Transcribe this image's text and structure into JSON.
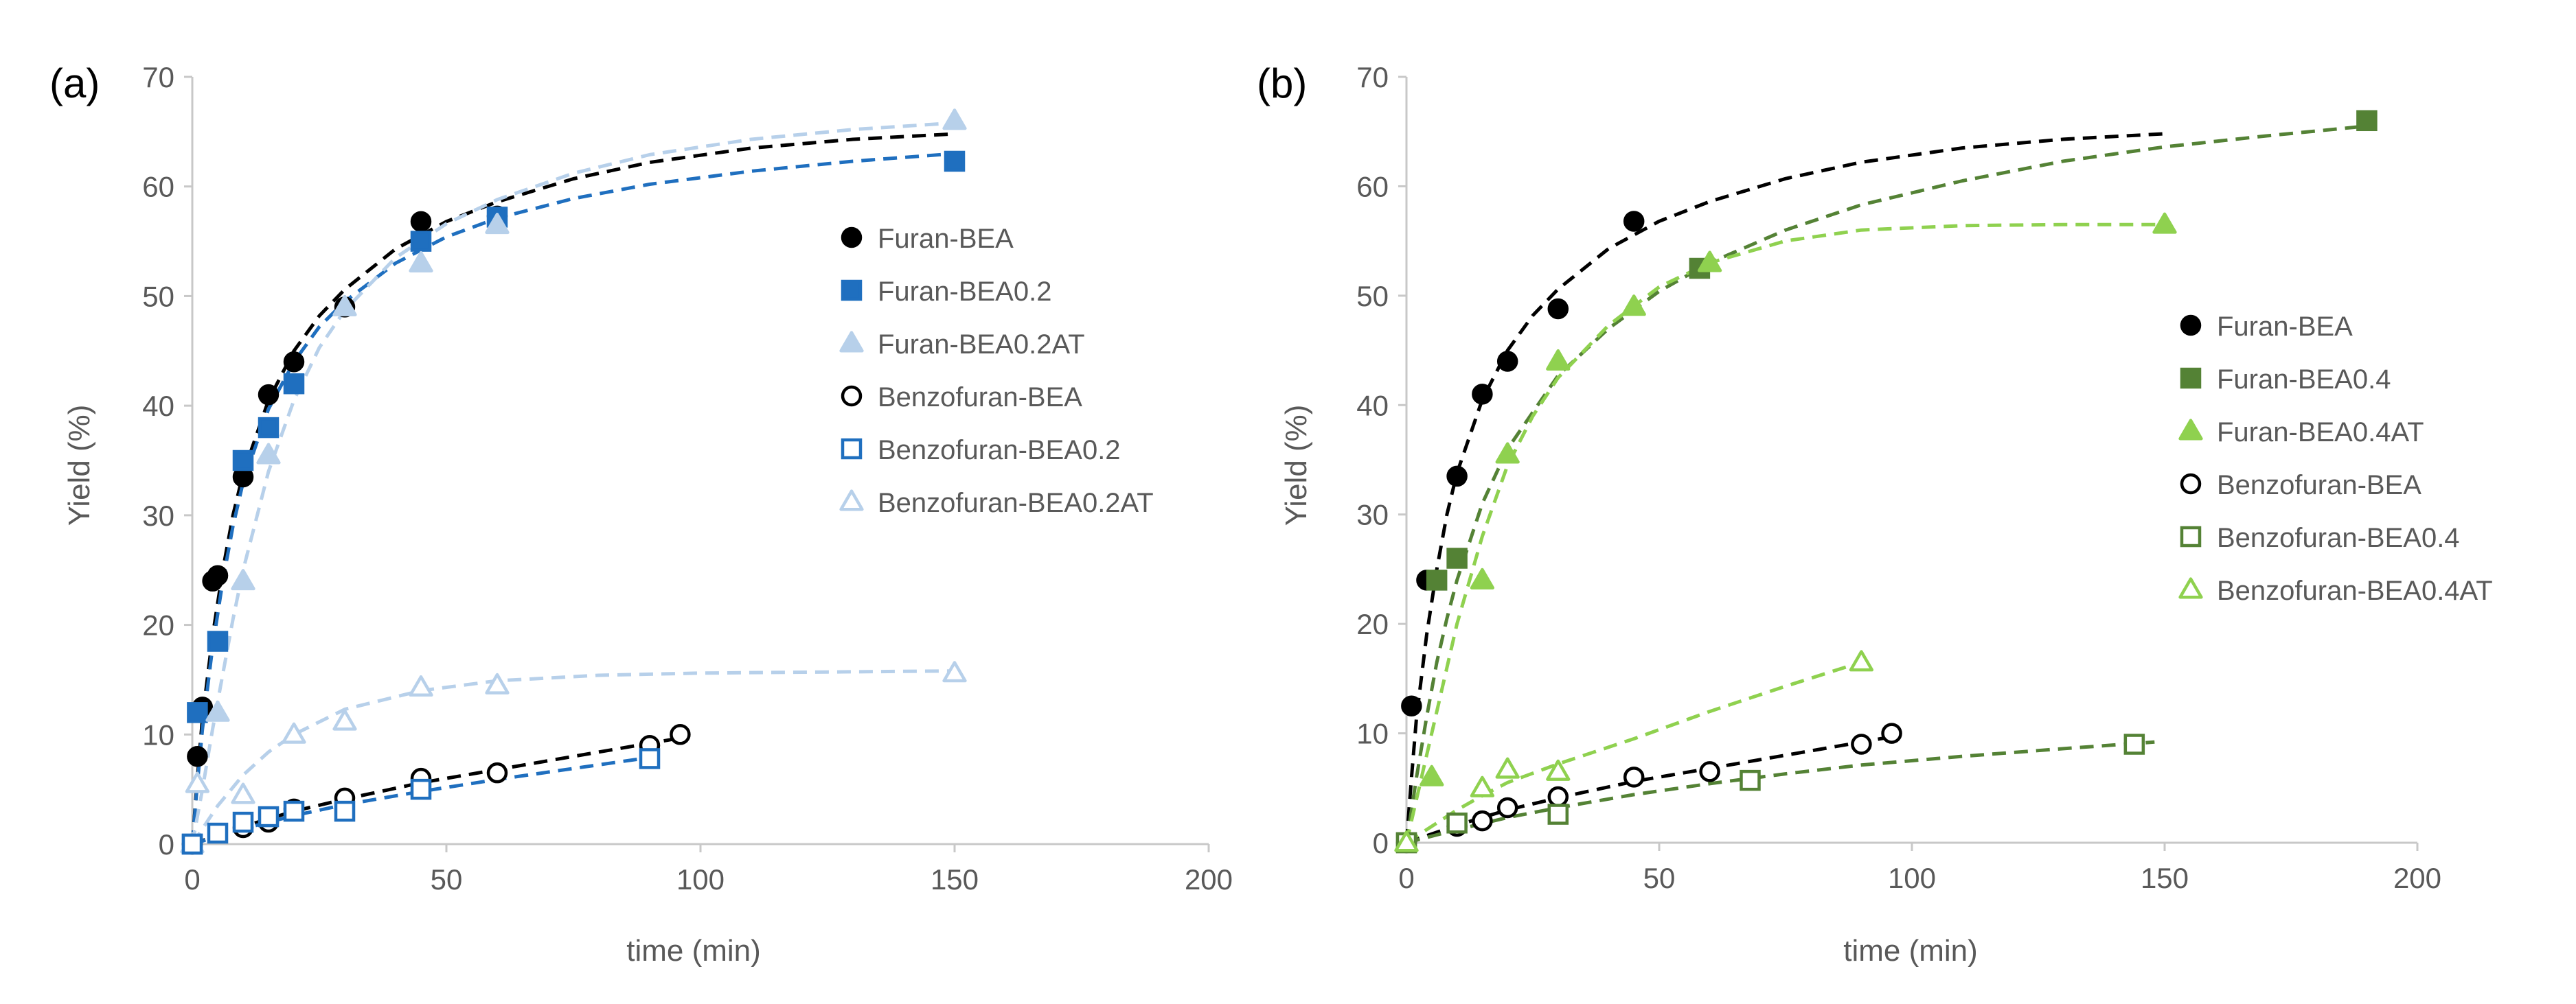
{
  "colors": {
    "black": "#000000",
    "dark_blue": "#1f6fbf",
    "light_blue": "#b7d0ea",
    "dark_green": "#548235",
    "light_green": "#8fd14f",
    "axis": "#c8c8c8",
    "text": "#595959"
  },
  "chart_data": [
    {
      "panel_label": "(a)",
      "type": "scatter",
      "xlabel": "time (min)",
      "ylabel": "Yield (%)",
      "xlim": [
        0,
        200
      ],
      "ylim": [
        0,
        70
      ],
      "xticks": [
        "0",
        "50",
        "100",
        "150",
        "200"
      ],
      "yticks": [
        "0",
        "10",
        "20",
        "30",
        "40",
        "50",
        "60",
        "70"
      ],
      "grid": false,
      "legend_position": "right",
      "series": [
        {
          "name": "Furan-BEA",
          "marker": "circle",
          "filled": true,
          "color": "#000000",
          "x": [
            0,
            1,
            2,
            4,
            5,
            10,
            15,
            20,
            30,
            45,
            60
          ],
          "y": [
            0,
            8,
            12.5,
            24,
            24.5,
            33.5,
            41,
            44,
            49,
            56.8,
            57.3
          ],
          "fit": [
            [
              0,
              0
            ],
            [
              1,
              6
            ],
            [
              2,
              11.5
            ],
            [
              4,
              19
            ],
            [
              6,
              25
            ],
            [
              8,
              30
            ],
            [
              10,
              33.8
            ],
            [
              15,
              40.5
            ],
            [
              20,
              45
            ],
            [
              25,
              48.2
            ],
            [
              30,
              50.6
            ],
            [
              40,
              54.3
            ],
            [
              50,
              56.8
            ],
            [
              60,
              58.6
            ],
            [
              75,
              60.7
            ],
            [
              90,
              62.2
            ],
            [
              110,
              63.5
            ],
            [
              130,
              64.3
            ],
            [
              150,
              64.8
            ]
          ]
        },
        {
          "name": "Furan-BEA0.2",
          "marker": "square",
          "filled": true,
          "color": "#1f6fbf",
          "x": [
            0,
            1,
            5,
            10,
            15,
            20,
            45,
            60,
            150
          ],
          "y": [
            0,
            12,
            18.5,
            35,
            38,
            42,
            55,
            57.2,
            62.3
          ],
          "fit": [
            [
              0,
              0
            ],
            [
              1,
              5.5
            ],
            [
              2,
              10.5
            ],
            [
              4,
              18
            ],
            [
              6,
              24
            ],
            [
              8,
              29
            ],
            [
              10,
              33
            ],
            [
              15,
              39.7
            ],
            [
              20,
              44
            ],
            [
              25,
              47.2
            ],
            [
              30,
              49.5
            ],
            [
              40,
              53
            ],
            [
              50,
              55.4
            ],
            [
              60,
              57.1
            ],
            [
              75,
              58.9
            ],
            [
              90,
              60.2
            ],
            [
              110,
              61.4
            ],
            [
              130,
              62.3
            ],
            [
              150,
              63
            ]
          ]
        },
        {
          "name": "Furan-BEA0.2AT",
          "marker": "triangle",
          "filled": true,
          "color": "#b7d0ea",
          "x": [
            0,
            5,
            10,
            15,
            30,
            45,
            60,
            150
          ],
          "y": [
            0,
            12,
            24,
            35.5,
            49,
            53,
            56.5,
            66
          ],
          "fit": [
            [
              0,
              0
            ],
            [
              2,
              5
            ],
            [
              4,
              10.5
            ],
            [
              6,
              15.5
            ],
            [
              8,
              20.5
            ],
            [
              10,
              25
            ],
            [
              15,
              34
            ],
            [
              20,
              40.5
            ],
            [
              25,
              45.3
            ],
            [
              30,
              48.7
            ],
            [
              40,
              53.5
            ],
            [
              50,
              56.6
            ],
            [
              60,
              58.8
            ],
            [
              75,
              61.2
            ],
            [
              90,
              62.9
            ],
            [
              110,
              64.3
            ],
            [
              130,
              65.2
            ],
            [
              150,
              65.8
            ]
          ]
        },
        {
          "name": "Benzofuran-BEA",
          "marker": "circle",
          "filled": false,
          "color": "#000000",
          "x": [
            0,
            10,
            15,
            20,
            30,
            45,
            60,
            90,
            96
          ],
          "y": [
            0,
            1.5,
            2,
            3.2,
            4.2,
            6,
            6.5,
            9,
            10
          ],
          "fit": [
            [
              0,
              0
            ],
            [
              5,
              0.8
            ],
            [
              10,
              1.6
            ],
            [
              15,
              2.3
            ],
            [
              20,
              3
            ],
            [
              30,
              4.1
            ],
            [
              45,
              5.6
            ],
            [
              60,
              6.8
            ],
            [
              75,
              8
            ],
            [
              90,
              9.2
            ],
            [
              95,
              9.6
            ]
          ]
        },
        {
          "name": "Benzofuran-BEA0.2",
          "marker": "square",
          "filled": false,
          "color": "#1f6fbf",
          "x": [
            0,
            5,
            10,
            15,
            20,
            30,
            45,
            90
          ],
          "y": [
            0,
            1,
            2,
            2.5,
            3,
            3,
            5,
            7.8
          ],
          "fit": [
            [
              0,
              0
            ],
            [
              5,
              0.7
            ],
            [
              10,
              1.4
            ],
            [
              15,
              2
            ],
            [
              20,
              2.6
            ],
            [
              30,
              3.6
            ],
            [
              45,
              4.8
            ],
            [
              60,
              5.9
            ],
            [
              75,
              6.9
            ],
            [
              90,
              7.9
            ]
          ]
        },
        {
          "name": "Benzofuran-BEA0.2AT",
          "marker": "triangle",
          "filled": false,
          "color": "#b7d0ea",
          "x": [
            1,
            10,
            20,
            30,
            45,
            60,
            150
          ],
          "y": [
            5.5,
            4.5,
            10,
            11.2,
            14.3,
            14.5,
            15.6
          ],
          "fit": [
            [
              0,
              0
            ],
            [
              5,
              3.5
            ],
            [
              10,
              6.3
            ],
            [
              15,
              8.4
            ],
            [
              20,
              10
            ],
            [
              30,
              12.3
            ],
            [
              45,
              14
            ],
            [
              60,
              14.9
            ],
            [
              80,
              15.4
            ],
            [
              100,
              15.6
            ],
            [
              125,
              15.7
            ],
            [
              150,
              15.8
            ]
          ]
        }
      ]
    },
    {
      "panel_label": "(b)",
      "type": "scatter",
      "xlabel": "time (min)",
      "ylabel": "Yield (%)",
      "xlim": [
        0,
        200
      ],
      "ylim": [
        0,
        70
      ],
      "xticks": [
        "0",
        "50",
        "100",
        "150",
        "200"
      ],
      "yticks": [
        "0",
        "10",
        "20",
        "30",
        "40",
        "50",
        "60",
        "70"
      ],
      "grid": false,
      "legend_position": "right",
      "series": [
        {
          "name": "Furan-BEA",
          "marker": "circle",
          "filled": true,
          "color": "#000000",
          "x": [
            1,
            4,
            10,
            15,
            20,
            30,
            45
          ],
          "y": [
            12.5,
            24,
            33.5,
            41,
            44,
            48.8,
            56.8
          ],
          "fit": [
            [
              0,
              0
            ],
            [
              1,
              6
            ],
            [
              2,
              11.5
            ],
            [
              4,
              19
            ],
            [
              6,
              25
            ],
            [
              8,
              30
            ],
            [
              10,
              33.8
            ],
            [
              15,
              40.5
            ],
            [
              20,
              45
            ],
            [
              25,
              48.2
            ],
            [
              30,
              50.6
            ],
            [
              40,
              54.3
            ],
            [
              50,
              56.8
            ],
            [
              60,
              58.6
            ],
            [
              75,
              60.7
            ],
            [
              90,
              62.2
            ],
            [
              110,
              63.5
            ],
            [
              130,
              64.3
            ],
            [
              150,
              64.8
            ]
          ]
        },
        {
          "name": "Furan-BEA0.4",
          "marker": "square",
          "filled": true,
          "color": "#548235",
          "x": [
            0,
            6,
            10,
            58,
            190
          ],
          "y": [
            0,
            24,
            26,
            52.5,
            66
          ],
          "fit": [
            [
              0,
              0
            ],
            [
              2,
              6
            ],
            [
              4,
              11.5
            ],
            [
              6,
              16.5
            ],
            [
              8,
              20.5
            ],
            [
              10,
              24
            ],
            [
              15,
              31
            ],
            [
              20,
              36
            ],
            [
              30,
              42.7
            ],
            [
              40,
              47
            ],
            [
              50,
              50.4
            ],
            [
              60,
              53
            ],
            [
              75,
              56
            ],
            [
              90,
              58.3
            ],
            [
              110,
              60.5
            ],
            [
              130,
              62.3
            ],
            [
              150,
              63.6
            ],
            [
              170,
              64.6
            ],
            [
              190,
              65.5
            ]
          ]
        },
        {
          "name": "Furan-BEA0.4AT",
          "marker": "triangle",
          "filled": true,
          "color": "#8fd14f",
          "x": [
            0,
            5,
            15,
            20,
            30,
            45,
            60,
            150
          ],
          "y": [
            0,
            6,
            24,
            35.5,
            44,
            49,
            53,
            56.5
          ],
          "fit": [
            [
              0,
              0
            ],
            [
              2,
              4
            ],
            [
              4,
              8
            ],
            [
              6,
              12
            ],
            [
              8,
              16
            ],
            [
              10,
              20
            ],
            [
              15,
              28
            ],
            [
              20,
              34.5
            ],
            [
              25,
              39
            ],
            [
              30,
              42.5
            ],
            [
              40,
              47.3
            ],
            [
              50,
              50.8
            ],
            [
              60,
              53
            ],
            [
              75,
              55
            ],
            [
              90,
              56
            ],
            [
              110,
              56.4
            ],
            [
              130,
              56.5
            ],
            [
              150,
              56.5
            ]
          ]
        },
        {
          "name": "Benzofuran-BEA",
          "marker": "circle",
          "filled": false,
          "color": "#000000",
          "x": [
            0,
            10,
            15,
            20,
            30,
            45,
            60,
            90,
            96
          ],
          "y": [
            0,
            1.5,
            2,
            3.2,
            4.2,
            6,
            6.5,
            9,
            10
          ],
          "fit": [
            [
              0,
              0
            ],
            [
              5,
              0.8
            ],
            [
              10,
              1.6
            ],
            [
              15,
              2.3
            ],
            [
              20,
              3
            ],
            [
              30,
              4.1
            ],
            [
              45,
              5.6
            ],
            [
              60,
              6.8
            ],
            [
              75,
              8
            ],
            [
              90,
              9.2
            ],
            [
              95,
              9.6
            ]
          ]
        },
        {
          "name": "Benzofuran-BEA0.4",
          "marker": "square",
          "filled": false,
          "color": "#548235",
          "x": [
            0,
            10,
            30,
            68,
            144
          ],
          "y": [
            0,
            1.8,
            2.6,
            5.7,
            9
          ],
          "fit": [
            [
              0,
              0
            ],
            [
              10,
              1.2
            ],
            [
              20,
              2.3
            ],
            [
              30,
              3.2
            ],
            [
              45,
              4.4
            ],
            [
              60,
              5.4
            ],
            [
              75,
              6.3
            ],
            [
              90,
              7.1
            ],
            [
              110,
              7.9
            ],
            [
              130,
              8.6
            ],
            [
              148,
              9.2
            ]
          ]
        },
        {
          "name": "Benzofuran-BEA0.4AT",
          "marker": "triangle",
          "filled": false,
          "color": "#8fd14f",
          "x": [
            0,
            15,
            20,
            30,
            90
          ],
          "y": [
            0,
            5,
            6.7,
            6.5,
            16.5
          ],
          "fit": [
            [
              0,
              0
            ],
            [
              5,
              1.5
            ],
            [
              10,
              3
            ],
            [
              15,
              4.3
            ],
            [
              20,
              5.5
            ],
            [
              30,
              7.2
            ],
            [
              45,
              9.5
            ],
            [
              60,
              12
            ],
            [
              75,
              14.3
            ],
            [
              90,
              16.5
            ]
          ]
        }
      ]
    }
  ]
}
